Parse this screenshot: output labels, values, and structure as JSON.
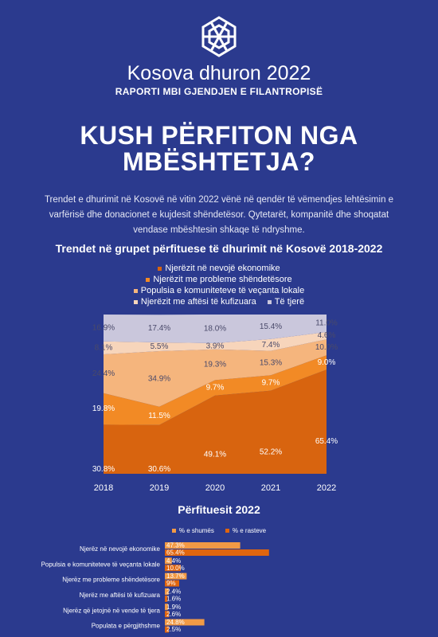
{
  "header": {
    "title": "Kosova dhuron 2022",
    "subtitle": "RAPORTI MBI GJENDJEN E FILANTROPISË",
    "headline": [
      "KUSH PËRFITON NGA",
      "MBËSHTETJA?"
    ],
    "intro": "Trendet e dhurimit në Kosovë në vitin 2022 vënë në qendër të vëmendjes lehtësimin e varfërisë dhe donacionet e kujdesit shëndetësor. Qytetarët, kompanitë dhe shoqatat vendase mbështesin shkaqe të ndryshme."
  },
  "chart_data": [
    {
      "type": "area",
      "stacked": true,
      "title": "Trendet në grupet përfituese të dhurimit në Kosovë 2018-2022",
      "categories": [
        "2018",
        "2019",
        "2020",
        "2021",
        "2022"
      ],
      "ylim": [
        0,
        100
      ],
      "series": [
        {
          "name": "Njerëzit në nevojë ekonomike",
          "color": "#d8640f",
          "values": [
            30.8,
            30.6,
            49.1,
            52.2,
            65.4
          ],
          "value_labels": [
            "30.8%",
            "30.6%",
            "49.1%",
            "52.2%",
            "65.4%"
          ]
        },
        {
          "name": "Njerëzit me probleme shëndetësore",
          "color": "#f28a25",
          "values": [
            19.8,
            11.5,
            9.7,
            9.7,
            9.0
          ],
          "value_labels": [
            "19.8%",
            "11.5%",
            "9.7%",
            "9.7%",
            "9.0%"
          ]
        },
        {
          "name": "Populsia e komuniteteve të veçanta lokale",
          "color": "#f5b57d",
          "values": [
            24.4,
            34.9,
            19.3,
            15.3,
            10.0
          ],
          "value_labels": [
            "24.4%",
            "34.9%",
            "19.3%",
            "15.3%",
            "10.0%"
          ]
        },
        {
          "name": "Njerëzit me aftësi të kufizuara",
          "color": "#f7d5bb",
          "values": [
            8.1,
            5.5,
            3.9,
            7.4,
            4.6
          ],
          "value_labels": [
            "8.1%",
            "5.5%",
            "3.9%",
            "7.4%",
            "4.6%"
          ]
        },
        {
          "name": "Të tjerë",
          "color": "#cac7dc",
          "values": [
            16.9,
            17.4,
            18.0,
            15.4,
            11.0
          ],
          "value_labels": [
            "16.9%",
            "17.4%",
            "18.0%",
            "15.4%",
            "11.0%"
          ]
        }
      ]
    },
    {
      "type": "bar",
      "orientation": "horizontal",
      "title": "Përfituesit 2022",
      "xlim": [
        0,
        100
      ],
      "categories": [
        "Njerëz në nevojë ekonomike",
        "Populsia e komuniteteve të veçanta lokale",
        "Njerëz me probleme shëndetësore",
        "Njerëz me aftësi të kufizuara",
        "Njerëz që jetojnë në vende të tjera",
        "Populata e përgjithshme"
      ],
      "series": [
        {
          "name": "% e shumës",
          "color": "#f29a45",
          "values": [
            47.3,
            4.4,
            13.7,
            2.4,
            1.9,
            24.8
          ],
          "value_labels": [
            "47.3%",
            "4.4%",
            "13.7%",
            "2.4%",
            "1.9%",
            "24.8%"
          ]
        },
        {
          "name": "% e rasteve",
          "color": "#e0650e",
          "values": [
            65.4,
            10.0,
            9,
            1.6,
            2.6,
            2.5
          ],
          "value_labels": [
            "65.4%",
            "10.0%",
            "9%",
            "1.6%",
            "2.6%",
            "2.5%"
          ]
        }
      ]
    }
  ]
}
